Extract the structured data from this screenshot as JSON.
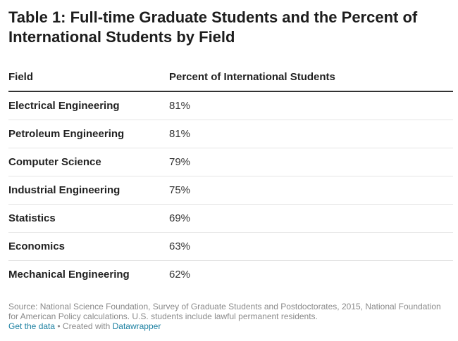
{
  "title": "Table 1: Full-time Graduate Students and the Percent of International Students by Field",
  "chart_data": {
    "type": "table",
    "title": "Table 1: Full-time Graduate Students and the Percent of International Students by Field",
    "columns": [
      "Field",
      "Percent of International Students"
    ],
    "rows": [
      {
        "field": "Electrical Engineering",
        "percent": "81%"
      },
      {
        "field": "Petroleum Engineering",
        "percent": "81%"
      },
      {
        "field": "Computer Science",
        "percent": "79%"
      },
      {
        "field": "Industrial Engineering",
        "percent": "75%"
      },
      {
        "field": "Statistics",
        "percent": "69%"
      },
      {
        "field": "Economics",
        "percent": "63%"
      },
      {
        "field": "Mechanical Engineering",
        "percent": "62%"
      }
    ],
    "values": [
      81,
      81,
      79,
      75,
      69,
      63,
      62
    ]
  },
  "footer": {
    "source": "Source: National Science Foundation, Survey of Graduate Students and Postdoctorates, 2015, National Foundation for American Policy calculations. U.S. students include lawful permanent residents.",
    "get_data_label": "Get the data",
    "separator": " • Created with ",
    "datawrapper_label": "Datawrapper"
  },
  "colors": {
    "link": "#1d81a2",
    "muted_text": "#8a8a8a",
    "header_rule": "#333333",
    "row_rule": "#e5e5e5"
  }
}
